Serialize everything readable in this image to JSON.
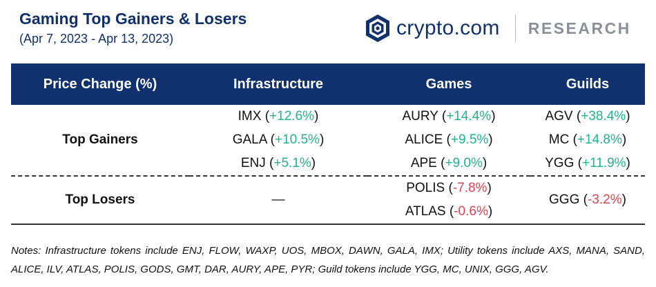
{
  "header": {
    "title": "Gaming Top Gainers & Losers",
    "subtitle": "(Apr 7, 2023 - Apr 13, 2023)"
  },
  "brand": {
    "name": "crypto.com",
    "section": "RESEARCH",
    "color": "#10316b"
  },
  "table": {
    "columns": [
      "Price Change (%)",
      "Infrastructure",
      "Games",
      "Guilds"
    ],
    "rows": [
      {
        "label": "Top Gainers",
        "infrastructure": [
          {
            "token": "IMX",
            "change": "+12.6%"
          },
          {
            "token": "GALA",
            "change": "+10.5%"
          },
          {
            "token": "ENJ",
            "change": "+5.1%"
          }
        ],
        "games": [
          {
            "token": "AURY",
            "change": "+14.4%"
          },
          {
            "token": "ALICE",
            "change": "+9.5%"
          },
          {
            "token": "APE",
            "change": "+9.0%"
          }
        ],
        "guilds": [
          {
            "token": "AGV",
            "change": "+38.4%"
          },
          {
            "token": "MC",
            "change": "+14.8%"
          },
          {
            "token": "YGG",
            "change": "+11.9%"
          }
        ]
      },
      {
        "label": "Top Losers",
        "infrastructure_empty": "—",
        "games": [
          {
            "token": "POLIS",
            "change": "-7.8%"
          },
          {
            "token": "ATLAS",
            "change": "-0.6%"
          }
        ],
        "guilds": [
          {
            "token": "GGG",
            "change": "-3.2%"
          }
        ]
      }
    ]
  },
  "colors": {
    "header_bg": "#10306e",
    "positive": "#1fb48f",
    "negative": "#e2414f"
  },
  "notes": "Notes: Infrastructure tokens include ENJ, FLOW, WAXP, UOS, MBOX, DAWN, GALA, IMX; Utility tokens include AXS, MANA, SAND, ALICE, ILV, ATLAS, POLIS, GODS, GMT, DAR, AURY, APE, PYR; Guild tokens include YGG, MC, UNIX, GGG, AGV."
}
